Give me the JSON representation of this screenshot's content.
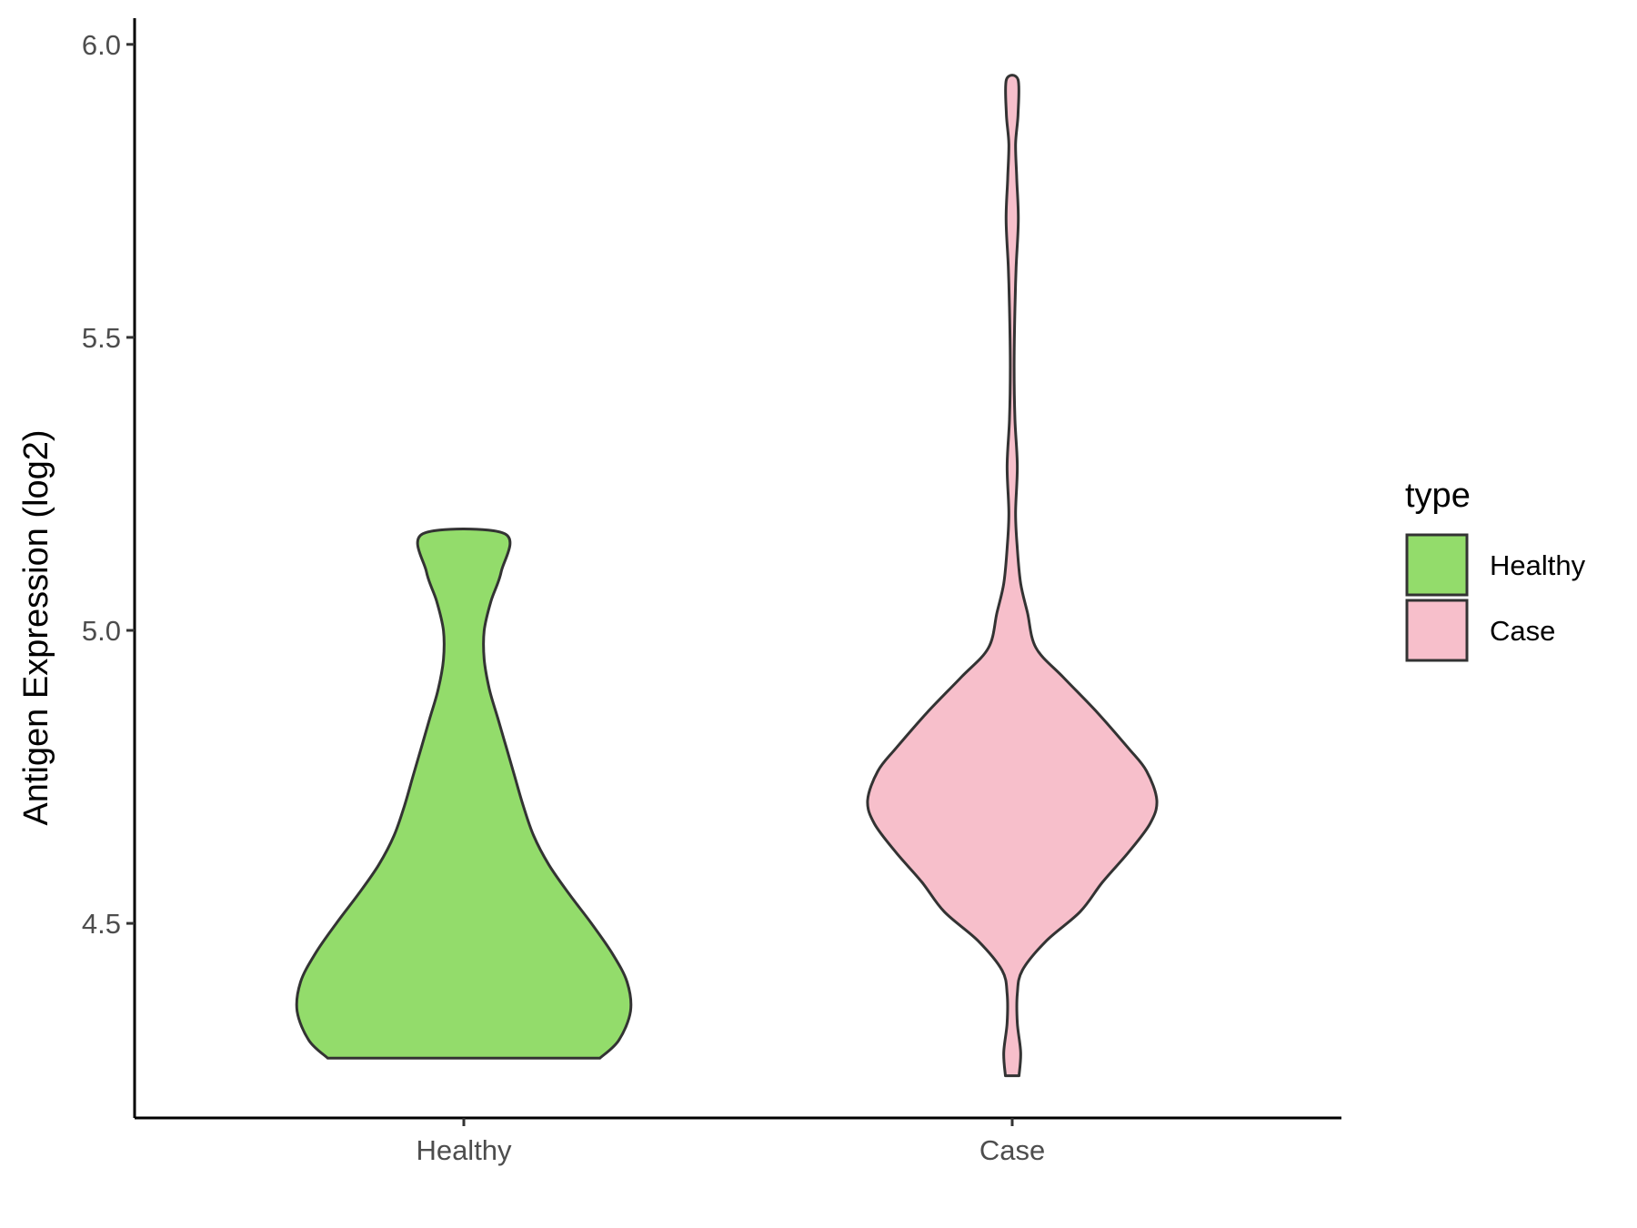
{
  "chart_data": {
    "type": "violin",
    "xlabel": "",
    "ylabel": "Antigen Expression (log2)",
    "categories": [
      "Healthy",
      "Case"
    ],
    "y_ticks": [
      "4.5",
      "5.0",
      "5.5",
      "6.0"
    ],
    "ylim": [
      4.19,
      6.02
    ],
    "legend": {
      "title": "type",
      "position": "right",
      "entries": [
        {
          "label": "Healthy",
          "color": "#93dc6b"
        },
        {
          "label": "Case",
          "color": "#f7bfcb"
        }
      ]
    },
    "series": [
      {
        "category": "Healthy",
        "color": "#93dc6b",
        "min": 4.27,
        "max": 5.165,
        "density_profile": [
          [
            4.27,
            0.8
          ],
          [
            4.3,
            0.91
          ],
          [
            4.35,
            0.98
          ],
          [
            4.4,
            0.96
          ],
          [
            4.45,
            0.87
          ],
          [
            4.5,
            0.75
          ],
          [
            4.55,
            0.62
          ],
          [
            4.6,
            0.5
          ],
          [
            4.65,
            0.41
          ],
          [
            4.7,
            0.35
          ],
          [
            4.75,
            0.3
          ],
          [
            4.8,
            0.25
          ],
          [
            4.85,
            0.2
          ],
          [
            4.9,
            0.15
          ],
          [
            4.95,
            0.12
          ],
          [
            5.0,
            0.12
          ],
          [
            5.05,
            0.16
          ],
          [
            5.1,
            0.22
          ],
          [
            5.165,
            0.24
          ]
        ]
      },
      {
        "category": "Case",
        "color": "#f7bfcb",
        "min": 4.24,
        "max": 5.94,
        "density_profile": [
          [
            4.24,
            0.04
          ],
          [
            4.28,
            0.05
          ],
          [
            4.33,
            0.03
          ],
          [
            4.38,
            0.03
          ],
          [
            4.42,
            0.06
          ],
          [
            4.47,
            0.2
          ],
          [
            4.52,
            0.4
          ],
          [
            4.57,
            0.53
          ],
          [
            4.62,
            0.68
          ],
          [
            4.67,
            0.81
          ],
          [
            4.71,
            0.85
          ],
          [
            4.76,
            0.79
          ],
          [
            4.8,
            0.68
          ],
          [
            4.86,
            0.5
          ],
          [
            4.92,
            0.3
          ],
          [
            4.97,
            0.14
          ],
          [
            5.03,
            0.09
          ],
          [
            5.08,
            0.05
          ],
          [
            5.14,
            0.03
          ],
          [
            5.2,
            0.02
          ],
          [
            5.28,
            0.03
          ],
          [
            5.36,
            0.016
          ],
          [
            5.45,
            0.011
          ],
          [
            5.55,
            0.016
          ],
          [
            5.62,
            0.023
          ],
          [
            5.7,
            0.036
          ],
          [
            5.77,
            0.027
          ],
          [
            5.83,
            0.02
          ],
          [
            5.88,
            0.034
          ],
          [
            5.94,
            0.034
          ]
        ]
      }
    ]
  }
}
